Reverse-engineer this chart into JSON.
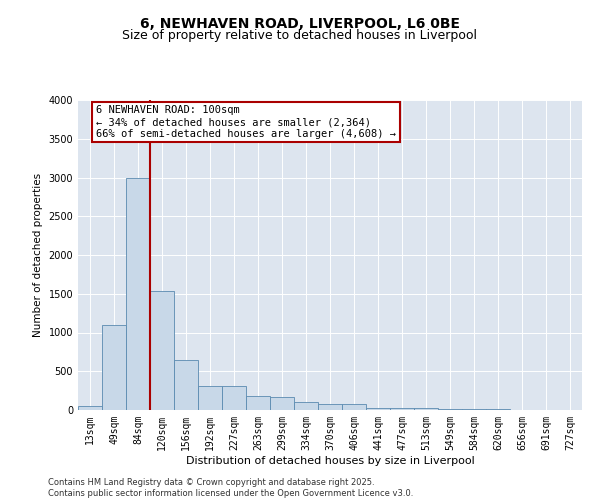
{
  "title": "6, NEWHAVEN ROAD, LIVERPOOL, L6 0BE",
  "subtitle": "Size of property relative to detached houses in Liverpool",
  "xlabel": "Distribution of detached houses by size in Liverpool",
  "ylabel": "Number of detached properties",
  "categories": [
    "13sqm",
    "49sqm",
    "84sqm",
    "120sqm",
    "156sqm",
    "192sqm",
    "227sqm",
    "263sqm",
    "299sqm",
    "334sqm",
    "370sqm",
    "406sqm",
    "441sqm",
    "477sqm",
    "513sqm",
    "549sqm",
    "584sqm",
    "620sqm",
    "656sqm",
    "691sqm",
    "727sqm"
  ],
  "values": [
    50,
    1100,
    3000,
    1540,
    650,
    310,
    305,
    175,
    170,
    100,
    80,
    75,
    30,
    25,
    20,
    15,
    10,
    8,
    5,
    5,
    5
  ],
  "bar_color": "#c8d8e8",
  "bar_edge_color": "#5a8ab0",
  "vline_color": "#aa0000",
  "annotation_text": "6 NEWHAVEN ROAD: 100sqm\n← 34% of detached houses are smaller (2,364)\n66% of semi-detached houses are larger (4,608) →",
  "annotation_box_facecolor": "#ffffff",
  "annotation_box_edge_color": "#aa0000",
  "ylim": [
    0,
    4000
  ],
  "yticks": [
    0,
    500,
    1000,
    1500,
    2000,
    2500,
    3000,
    3500,
    4000
  ],
  "background_color": "#dde5ef",
  "grid_color": "#ffffff",
  "footer_text": "Contains HM Land Registry data © Crown copyright and database right 2025.\nContains public sector information licensed under the Open Government Licence v3.0.",
  "title_fontsize": 10,
  "subtitle_fontsize": 9,
  "xlabel_fontsize": 8,
  "ylabel_fontsize": 7.5,
  "tick_fontsize": 7,
  "annot_fontsize": 7.5,
  "footer_fontsize": 6
}
